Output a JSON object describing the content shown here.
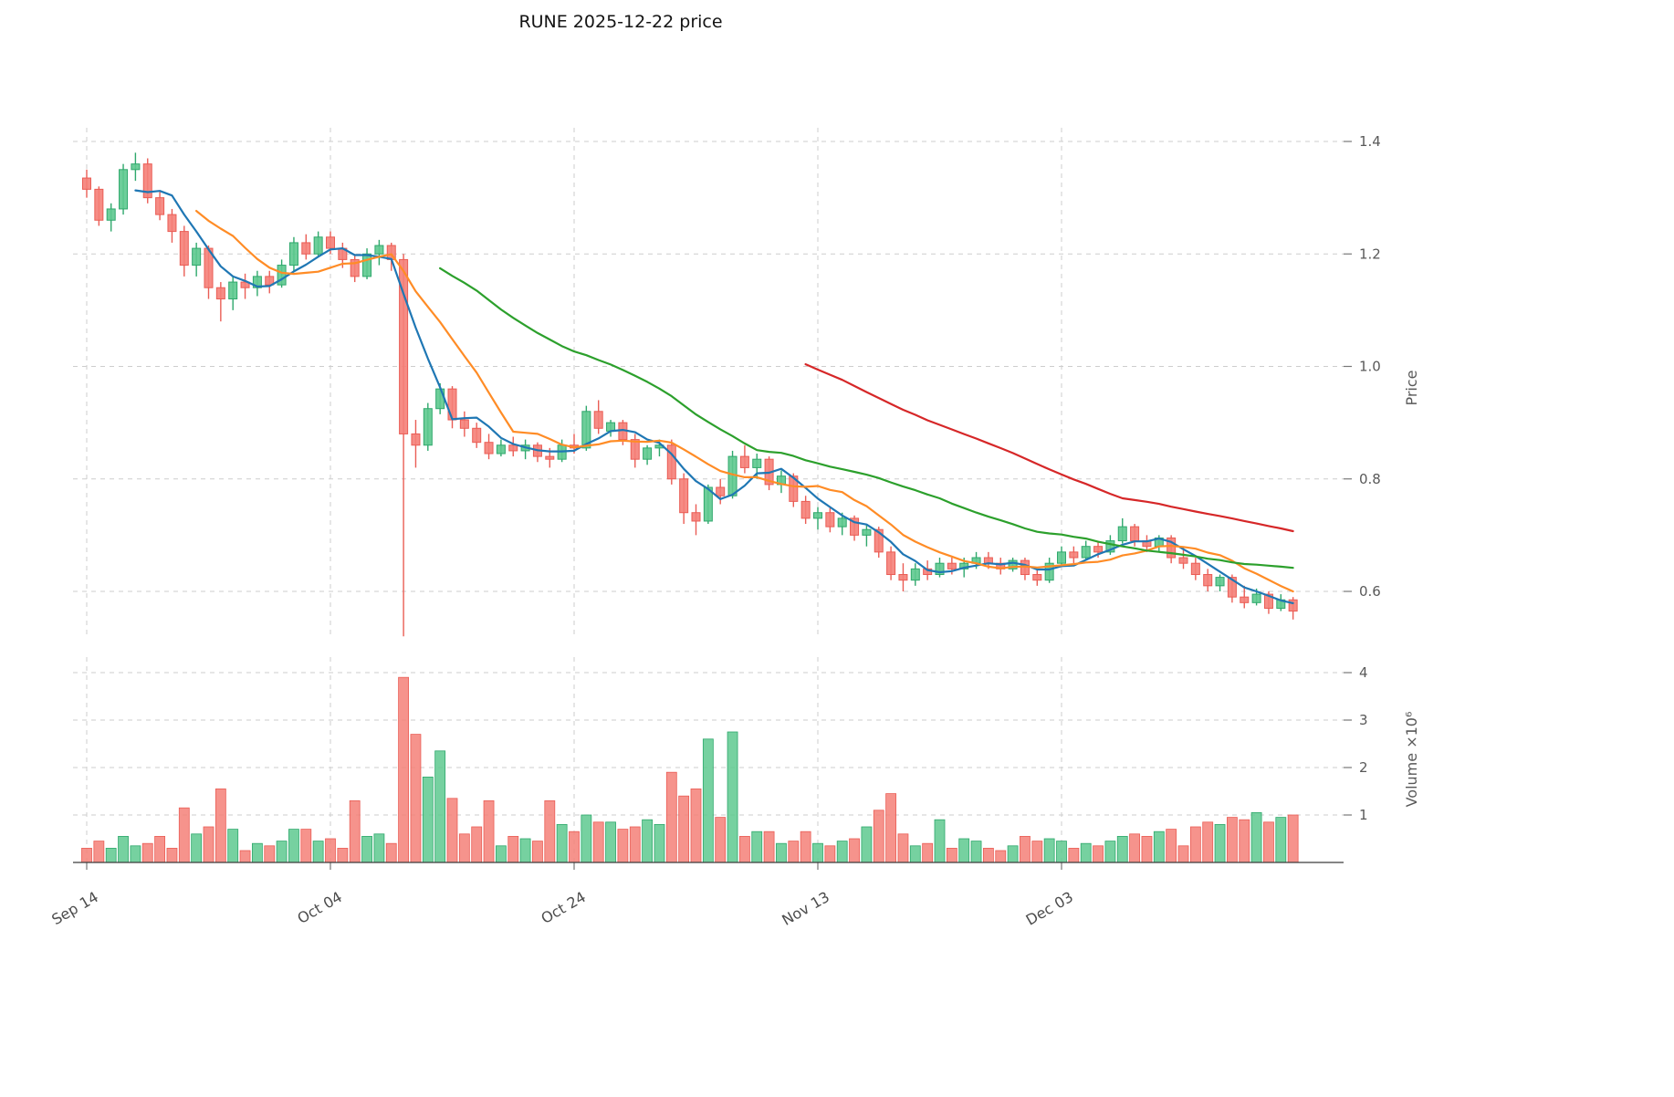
{
  "title": "RUNE  2025-12-22  price",
  "colors": {
    "up_fill": "#5ec98f",
    "up_edge": "#2fa86c",
    "down_fill": "#f58078",
    "down_edge": "#ea5d55",
    "grid": "#cdcdcd",
    "tick_text": "#595959",
    "title_text": "#141414",
    "axis_spine": "#3c3c3c"
  },
  "chart_data": {
    "type": "candlestick",
    "title": "RUNE  2025-12-22  price",
    "start_date": "2025-09-14",
    "frequency": "daily",
    "grid": true,
    "x_ticks": [
      {
        "index": 0,
        "label": "Sep 14"
      },
      {
        "index": 20,
        "label": "Oct 04"
      },
      {
        "index": 40,
        "label": "Oct 24"
      },
      {
        "index": 60,
        "label": "Nov 13"
      },
      {
        "index": 80,
        "label": "Dec 03"
      }
    ],
    "price_axis": {
      "label": "Price",
      "ticks": [
        "0.6",
        "0.8",
        "1.0",
        "1.2",
        "1.4"
      ],
      "tick_values": [
        0.6,
        0.8,
        1.0,
        1.2,
        1.4
      ],
      "range": [
        0.51,
        1.425
      ]
    },
    "volume_axis": {
      "label": "Volume  ×10⁶",
      "ticks": [
        "1",
        "2",
        "3",
        "4"
      ],
      "tick_values": [
        1,
        2,
        3,
        4
      ],
      "range": [
        0,
        4.3
      ]
    },
    "moving_averages": [
      {
        "name": "SMA5",
        "window": 5,
        "color": "#1f77b4"
      },
      {
        "name": "SMA10",
        "window": 10,
        "color": "#ff8c26"
      },
      {
        "name": "SMA30",
        "window": 30,
        "color": "#2ca02c"
      },
      {
        "name": "SMA60",
        "window": 60,
        "color": "#d62728"
      }
    ],
    "columns": [
      "open",
      "high",
      "low",
      "close",
      "volume_millions"
    ],
    "candles": [
      [
        1.335,
        1.35,
        1.3,
        1.315,
        0.3
      ],
      [
        1.315,
        1.32,
        1.25,
        1.26,
        0.45
      ],
      [
        1.26,
        1.29,
        1.24,
        1.28,
        0.3
      ],
      [
        1.28,
        1.36,
        1.27,
        1.35,
        0.55
      ],
      [
        1.35,
        1.38,
        1.33,
        1.36,
        0.35
      ],
      [
        1.36,
        1.37,
        1.29,
        1.3,
        0.4
      ],
      [
        1.3,
        1.31,
        1.26,
        1.27,
        0.55
      ],
      [
        1.27,
        1.28,
        1.22,
        1.24,
        0.3
      ],
      [
        1.24,
        1.25,
        1.16,
        1.18,
        1.15
      ],
      [
        1.18,
        1.22,
        1.16,
        1.21,
        0.6
      ],
      [
        1.21,
        1.215,
        1.12,
        1.14,
        0.75
      ],
      [
        1.14,
        1.15,
        1.08,
        1.12,
        1.55
      ],
      [
        1.12,
        1.16,
        1.1,
        1.15,
        0.7
      ],
      [
        1.15,
        1.165,
        1.12,
        1.14,
        0.25
      ],
      [
        1.14,
        1.17,
        1.125,
        1.16,
        0.4
      ],
      [
        1.16,
        1.17,
        1.13,
        1.145,
        0.35
      ],
      [
        1.145,
        1.19,
        1.14,
        1.18,
        0.45
      ],
      [
        1.18,
        1.23,
        1.17,
        1.22,
        0.7
      ],
      [
        1.22,
        1.235,
        1.19,
        1.2,
        0.7
      ],
      [
        1.2,
        1.24,
        1.195,
        1.23,
        0.45
      ],
      [
        1.23,
        1.24,
        1.2,
        1.21,
        0.5
      ],
      [
        1.21,
        1.22,
        1.175,
        1.19,
        0.3
      ],
      [
        1.19,
        1.2,
        1.15,
        1.16,
        1.3
      ],
      [
        1.16,
        1.21,
        1.155,
        1.2,
        0.55
      ],
      [
        1.2,
        1.225,
        1.18,
        1.215,
        0.6
      ],
      [
        1.215,
        1.22,
        1.17,
        1.19,
        0.4
      ],
      [
        1.19,
        1.2,
        0.52,
        0.88,
        3.9
      ],
      [
        0.88,
        0.905,
        0.82,
        0.86,
        2.7
      ],
      [
        0.86,
        0.935,
        0.85,
        0.925,
        1.8
      ],
      [
        0.925,
        0.97,
        0.915,
        0.96,
        2.35
      ],
      [
        0.96,
        0.965,
        0.89,
        0.905,
        1.35
      ],
      [
        0.905,
        0.92,
        0.875,
        0.89,
        0.6
      ],
      [
        0.89,
        0.9,
        0.855,
        0.865,
        0.75
      ],
      [
        0.865,
        0.88,
        0.835,
        0.845,
        1.3
      ],
      [
        0.845,
        0.87,
        0.84,
        0.86,
        0.35
      ],
      [
        0.86,
        0.875,
        0.84,
        0.85,
        0.55
      ],
      [
        0.85,
        0.87,
        0.835,
        0.86,
        0.5
      ],
      [
        0.86,
        0.865,
        0.83,
        0.84,
        0.45
      ],
      [
        0.84,
        0.855,
        0.82,
        0.835,
        1.3
      ],
      [
        0.835,
        0.87,
        0.83,
        0.86,
        0.8
      ],
      [
        0.86,
        0.88,
        0.845,
        0.855,
        0.65
      ],
      [
        0.855,
        0.93,
        0.85,
        0.92,
        1.0
      ],
      [
        0.92,
        0.94,
        0.88,
        0.89,
        0.85
      ],
      [
        0.885,
        0.905,
        0.875,
        0.9,
        0.85
      ],
      [
        0.9,
        0.905,
        0.86,
        0.87,
        0.7
      ],
      [
        0.87,
        0.88,
        0.82,
        0.835,
        0.75
      ],
      [
        0.835,
        0.86,
        0.825,
        0.855,
        0.9
      ],
      [
        0.855,
        0.87,
        0.84,
        0.86,
        0.8
      ],
      [
        0.86,
        0.87,
        0.79,
        0.8,
        1.9
      ],
      [
        0.8,
        0.81,
        0.72,
        0.74,
        1.4
      ],
      [
        0.74,
        0.755,
        0.7,
        0.725,
        1.55
      ],
      [
        0.725,
        0.79,
        0.72,
        0.785,
        2.6
      ],
      [
        0.785,
        0.8,
        0.755,
        0.77,
        0.95
      ],
      [
        0.77,
        0.85,
        0.765,
        0.84,
        2.75
      ],
      [
        0.84,
        0.86,
        0.81,
        0.82,
        0.55
      ],
      [
        0.82,
        0.845,
        0.8,
        0.835,
        0.65
      ],
      [
        0.835,
        0.84,
        0.78,
        0.79,
        0.65
      ],
      [
        0.79,
        0.815,
        0.775,
        0.805,
        0.4
      ],
      [
        0.805,
        0.81,
        0.75,
        0.76,
        0.45
      ],
      [
        0.76,
        0.77,
        0.72,
        0.73,
        0.65
      ],
      [
        0.73,
        0.75,
        0.71,
        0.74,
        0.4
      ],
      [
        0.74,
        0.75,
        0.705,
        0.715,
        0.35
      ],
      [
        0.715,
        0.74,
        0.7,
        0.73,
        0.45
      ],
      [
        0.73,
        0.735,
        0.69,
        0.7,
        0.5
      ],
      [
        0.7,
        0.72,
        0.68,
        0.71,
        0.75
      ],
      [
        0.71,
        0.715,
        0.66,
        0.67,
        1.1
      ],
      [
        0.67,
        0.68,
        0.62,
        0.63,
        1.45
      ],
      [
        0.63,
        0.65,
        0.6,
        0.62,
        0.6
      ],
      [
        0.62,
        0.65,
        0.61,
        0.64,
        0.35
      ],
      [
        0.64,
        0.655,
        0.62,
        0.63,
        0.4
      ],
      [
        0.63,
        0.66,
        0.625,
        0.65,
        0.9
      ],
      [
        0.65,
        0.66,
        0.63,
        0.64,
        0.3
      ],
      [
        0.64,
        0.66,
        0.625,
        0.65,
        0.5
      ],
      [
        0.65,
        0.67,
        0.64,
        0.66,
        0.45
      ],
      [
        0.66,
        0.67,
        0.64,
        0.65,
        0.3
      ],
      [
        0.65,
        0.66,
        0.63,
        0.64,
        0.25
      ],
      [
        0.64,
        0.66,
        0.635,
        0.655,
        0.35
      ],
      [
        0.655,
        0.66,
        0.62,
        0.63,
        0.55
      ],
      [
        0.63,
        0.64,
        0.61,
        0.62,
        0.45
      ],
      [
        0.62,
        0.66,
        0.615,
        0.65,
        0.5
      ],
      [
        0.65,
        0.68,
        0.645,
        0.67,
        0.45
      ],
      [
        0.67,
        0.68,
        0.65,
        0.66,
        0.3
      ],
      [
        0.66,
        0.69,
        0.655,
        0.68,
        0.4
      ],
      [
        0.68,
        0.69,
        0.66,
        0.67,
        0.35
      ],
      [
        0.67,
        0.7,
        0.665,
        0.69,
        0.45
      ],
      [
        0.69,
        0.73,
        0.685,
        0.715,
        0.55
      ],
      [
        0.715,
        0.72,
        0.68,
        0.69,
        0.6
      ],
      [
        0.69,
        0.7,
        0.67,
        0.68,
        0.55
      ],
      [
        0.68,
        0.7,
        0.67,
        0.695,
        0.65
      ],
      [
        0.695,
        0.7,
        0.65,
        0.66,
        0.7
      ],
      [
        0.66,
        0.68,
        0.64,
        0.65,
        0.35
      ],
      [
        0.65,
        0.66,
        0.62,
        0.63,
        0.75
      ],
      [
        0.63,
        0.64,
        0.6,
        0.61,
        0.85
      ],
      [
        0.61,
        0.63,
        0.6,
        0.625,
        0.8
      ],
      [
        0.625,
        0.63,
        0.58,
        0.59,
        0.95
      ],
      [
        0.59,
        0.61,
        0.57,
        0.58,
        0.9
      ],
      [
        0.58,
        0.605,
        0.575,
        0.595,
        1.05
      ],
      [
        0.595,
        0.6,
        0.56,
        0.57,
        0.85
      ],
      [
        0.57,
        0.595,
        0.565,
        0.585,
        0.95
      ],
      [
        0.585,
        0.59,
        0.55,
        0.565,
        1.0
      ]
    ]
  }
}
